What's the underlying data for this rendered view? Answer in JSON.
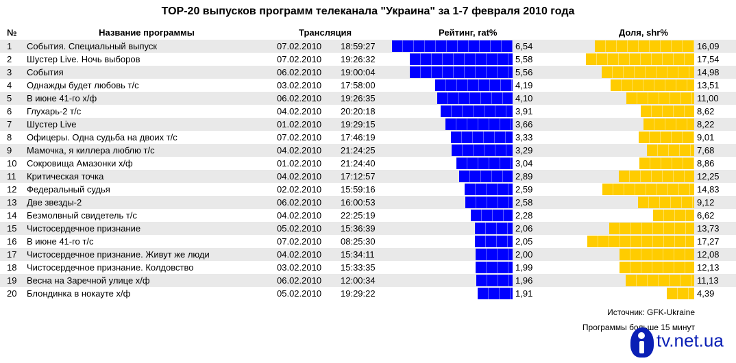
{
  "chart_data": {
    "type": "table",
    "title": "TOP-20 выпусков программ телеканала \"Украина\" за 1-7 февраля 2010 года",
    "headers": {
      "num": "№",
      "name": "Название программы",
      "broadcast": "Трансляция",
      "rating": "Рейтинг, rat%",
      "share": "Доля, shr%"
    },
    "rating_max": 6.54,
    "share_max": 17.54,
    "rows": [
      {
        "num": "1",
        "name": "События. Специальный выпуск",
        "date": "07.02.2010",
        "time": "18:59:27",
        "rating": "6,54",
        "share": "16,09",
        "rating_value": 6.54,
        "share_value": 16.09
      },
      {
        "num": "2",
        "name": "Шустер Live. Ночь выборов",
        "date": "07.02.2010",
        "time": "19:26:32",
        "rating": "5,58",
        "share": "17,54",
        "rating_value": 5.58,
        "share_value": 17.54
      },
      {
        "num": "3",
        "name": "События",
        "date": "06.02.2010",
        "time": "19:00:04",
        "rating": "5,56",
        "share": "14,98",
        "rating_value": 5.56,
        "share_value": 14.98
      },
      {
        "num": "4",
        "name": "Однажды будет любовь т/с",
        "date": "03.02.2010",
        "time": "17:58:00",
        "rating": "4,19",
        "share": "13,51",
        "rating_value": 4.19,
        "share_value": 13.51
      },
      {
        "num": "5",
        "name": "В июне 41-го х/ф",
        "date": "06.02.2010",
        "time": "19:26:35",
        "rating": "4,10",
        "share": "11,00",
        "rating_value": 4.1,
        "share_value": 11.0
      },
      {
        "num": "6",
        "name": "Глухарь-2 т/с",
        "date": "04.02.2010",
        "time": "20:20:18",
        "rating": "3,91",
        "share": "8,62",
        "rating_value": 3.91,
        "share_value": 8.62
      },
      {
        "num": "7",
        "name": "Шустер Live",
        "date": "01.02.2010",
        "time": "19:29:15",
        "rating": "3,66",
        "share": "8,22",
        "rating_value": 3.66,
        "share_value": 8.22
      },
      {
        "num": "8",
        "name": "Офицеры. Одна судьба на двоих т/с",
        "date": "07.02.2010",
        "time": "17:46:19",
        "rating": "3,33",
        "share": "9,01",
        "rating_value": 3.33,
        "share_value": 9.01
      },
      {
        "num": "9",
        "name": "Мамочка, я киллера люблю т/с",
        "date": "04.02.2010",
        "time": "21:24:25",
        "rating": "3,29",
        "share": "7,68",
        "rating_value": 3.29,
        "share_value": 7.68
      },
      {
        "num": "10",
        "name": "Сокровища Амазонки х/ф",
        "date": "01.02.2010",
        "time": "21:24:40",
        "rating": "3,04",
        "share": "8,86",
        "rating_value": 3.04,
        "share_value": 8.86
      },
      {
        "num": "11",
        "name": "Критическая точка",
        "date": "04.02.2010",
        "time": "17:12:57",
        "rating": "2,89",
        "share": "12,25",
        "rating_value": 2.89,
        "share_value": 12.25
      },
      {
        "num": "12",
        "name": "Федеральный судья",
        "date": "02.02.2010",
        "time": "15:59:16",
        "rating": "2,59",
        "share": "14,83",
        "rating_value": 2.59,
        "share_value": 14.83
      },
      {
        "num": "13",
        "name": "Две звезды-2",
        "date": "06.02.2010",
        "time": "16:00:53",
        "rating": "2,58",
        "share": "9,12",
        "rating_value": 2.58,
        "share_value": 9.12
      },
      {
        "num": "14",
        "name": "Безмолвный свидетель т/с",
        "date": "04.02.2010",
        "time": "22:25:19",
        "rating": "2,28",
        "share": "6,62",
        "rating_value": 2.28,
        "share_value": 6.62
      },
      {
        "num": "15",
        "name": "Чистосердечное признание",
        "date": "05.02.2010",
        "time": "15:36:39",
        "rating": "2,06",
        "share": "13,73",
        "rating_value": 2.06,
        "share_value": 13.73
      },
      {
        "num": "16",
        "name": "В июне 41-го т/с",
        "date": "07.02.2010",
        "time": "08:25:30",
        "rating": "2,05",
        "share": "17,27",
        "rating_value": 2.05,
        "share_value": 17.27
      },
      {
        "num": "17",
        "name": "Чистосердечное признание. Живут же люди",
        "date": "04.02.2010",
        "time": "15:34:11",
        "rating": "2,00",
        "share": "12,08",
        "rating_value": 2.0,
        "share_value": 12.08
      },
      {
        "num": "18",
        "name": "Чистосердечное признание. Колдовство",
        "date": "03.02.2010",
        "time": "15:33:35",
        "rating": "1,99",
        "share": "12,13",
        "rating_value": 1.99,
        "share_value": 12.13
      },
      {
        "num": "19",
        "name": "Весна на Заречной улице х/ф",
        "date": "06.02.2010",
        "time": "12:00:34",
        "rating": "1,96",
        "share": "11,13",
        "rating_value": 1.96,
        "share_value": 11.13
      },
      {
        "num": "20",
        "name": "Блондинка в нокауте х/ф",
        "date": "05.02.2010",
        "time": "19:29:22",
        "rating": "1,91",
        "share": "4,39",
        "rating_value": 1.91,
        "share_value": 4.39
      }
    ],
    "colors": {
      "rating_bar": "#0000ff",
      "share_bar": "#ffcc00",
      "row_stripe": "#e9e9e9"
    }
  },
  "footer": {
    "source": "Источник: GFK-Ukraine",
    "note": "Программы больше 15 минут",
    "logo_text": "tv.net.ua"
  }
}
